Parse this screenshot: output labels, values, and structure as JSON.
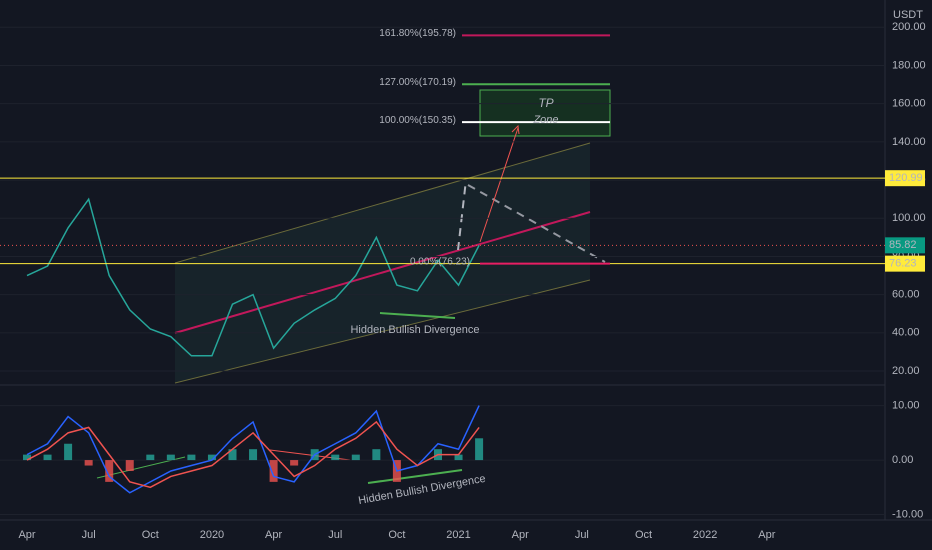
{
  "chart_data": [
    {
      "type": "line",
      "currency": "USDT",
      "categories": [
        "Apr",
        null,
        null,
        "Jul",
        null,
        null,
        "Oct",
        null,
        null,
        "2020",
        null,
        null,
        "Apr",
        null,
        null,
        "Jul",
        null,
        null,
        "Oct",
        null,
        null,
        "2021",
        null,
        null,
        "Apr",
        null,
        null,
        "Jul",
        null,
        null,
        "Oct",
        null,
        null,
        "2022",
        null,
        null,
        "Apr"
      ],
      "series": [
        {
          "color": "#26a69a",
          "values": [
            70,
            75,
            95,
            110,
            70,
            52,
            42,
            38,
            28,
            28,
            55,
            60,
            32,
            45,
            52,
            58,
            70,
            90,
            65,
            62,
            78,
            65,
            85.82,
            null,
            null,
            null,
            null,
            null,
            null,
            null,
            null,
            null,
            null,
            null,
            null,
            null,
            null
          ]
        }
      ],
      "ylim": [
        13.2,
        214.3
      ],
      "yticks": [
        {
          "value": 20,
          "label": "20.00"
        },
        {
          "value": 40,
          "label": "40.00"
        },
        {
          "value": 60,
          "label": "60.00"
        },
        {
          "value": 80,
          "label": "80.00"
        },
        {
          "value": 100,
          "label": "100.00"
        },
        {
          "value": 120,
          "label": "120.00"
        },
        {
          "value": 140,
          "label": "140.00"
        },
        {
          "value": 160,
          "label": "160.00"
        },
        {
          "value": 180,
          "label": "180.00"
        },
        {
          "value": 200,
          "label": "200.00"
        }
      ],
      "grid": true,
      "price_lines": [
        {
          "value": 120.99,
          "color": "#ffeb3b",
          "style": "solid"
        },
        {
          "value": 85.82,
          "color": "#ef5350",
          "style": "dotted",
          "box": "#089981"
        },
        {
          "value": 76.23,
          "color": "#ffeb3b",
          "style": "solid"
        }
      ],
      "fib_levels": [
        {
          "value": 195.78,
          "label": "161.80%(195.78)",
          "color": "#c2185b"
        },
        {
          "value": 170.19,
          "label": "127.00%(170.19)",
          "color": "#4caf50"
        },
        {
          "value": 150.35,
          "label": "100.00%(150.35)",
          "color": "#ffffff"
        },
        {
          "value": 76.23,
          "label": "0.00%(76.23)",
          "color": "#e91e63"
        }
      ],
      "annotations": [
        "TP",
        "Zone",
        "Hidden Bullish Divergence"
      ]
    },
    {
      "type": "macd",
      "series": [
        {
          "type": "bar",
          "up_color": "#26a69a",
          "down_color": "#ef5350",
          "values": [
            1,
            1,
            3,
            -1,
            -4,
            -2,
            1,
            1,
            1,
            1,
            2,
            2,
            -4,
            -1,
            2,
            1,
            1,
            2,
            -4,
            0,
            2,
            1,
            4
          ]
        },
        {
          "type": "line",
          "color": "#2962ff",
          "values": [
            1,
            3,
            8,
            5,
            -3,
            -6,
            -4,
            -2,
            -1,
            0,
            4,
            7,
            -3,
            -4,
            1,
            3,
            5,
            9,
            -2,
            -1,
            3,
            2,
            10
          ]
        },
        {
          "type": "line",
          "color": "#ef5350",
          "values": [
            0,
            2,
            5,
            6,
            1,
            -4,
            -5,
            -3,
            -2,
            -1,
            2,
            5,
            1,
            -3,
            -1,
            2,
            4,
            7,
            2,
            -1,
            1,
            1,
            6
          ]
        }
      ],
      "ylim": [
        -11,
        13.6
      ],
      "yticks": [
        {
          "value": 10,
          "label": "10.00"
        },
        {
          "value": 0,
          "label": "0.00"
        },
        {
          "value": -10,
          "label": "-10.00"
        }
      ],
      "grid": true,
      "annotations": [
        "Hidden Bullish Divergence"
      ]
    }
  ]
}
